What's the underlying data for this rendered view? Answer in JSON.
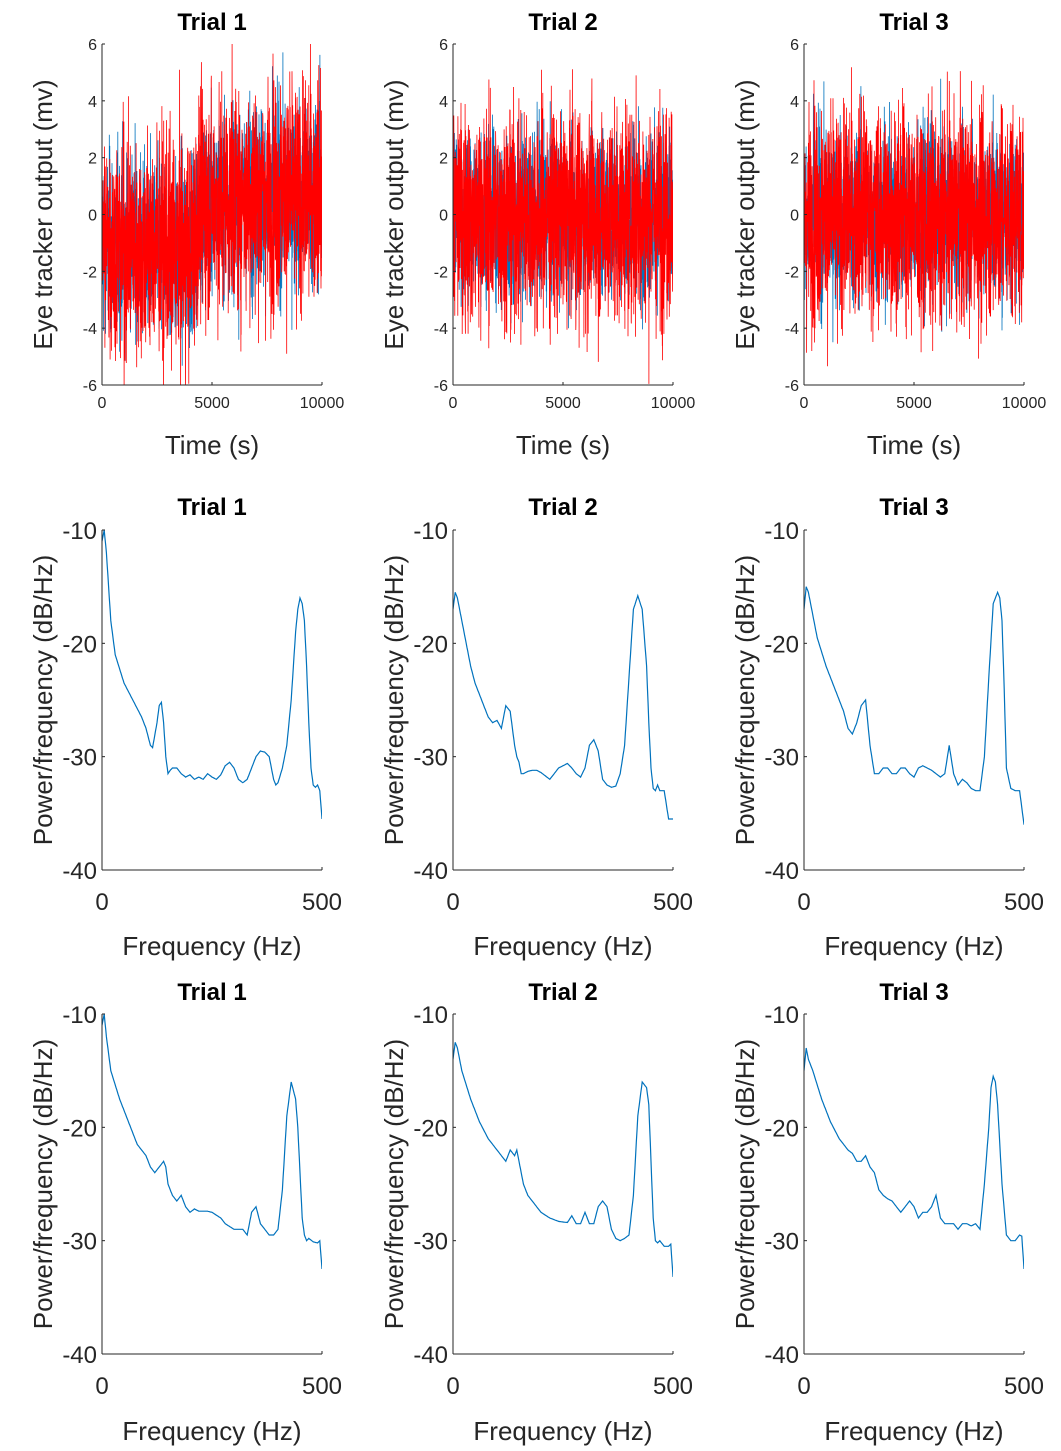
{
  "chart_data": [
    {
      "type": "line",
      "title": "Trial 1",
      "xlabel": "Time (s)",
      "ylabel": "Eye tracker output (mv)",
      "xlim": [
        0,
        10000
      ],
      "ylim": [
        -6,
        6
      ],
      "xticks": [
        0,
        5000,
        10000
      ],
      "xtick_labels": [
        "0",
        "5000",
        "10000"
      ],
      "yticks": [
        -6,
        -4,
        -2,
        0,
        2,
        4,
        6
      ],
      "ytick_labels": [
        "-6",
        "-4",
        "-2",
        "0",
        "2",
        "4",
        "6"
      ],
      "series": [
        {
          "color": "#0072BD",
          "noise": 1.6,
          "mean_x": [
            0,
            2000,
            4000,
            4500,
            6000,
            8000,
            10000
          ],
          "mean_y": [
            -1,
            -1.2,
            -1.3,
            0.3,
            0.6,
            0.7,
            0.8
          ]
        },
        {
          "color": "#FF0000",
          "noise": 2.0,
          "mean_x": [
            0,
            2000,
            4000,
            4500,
            6000,
            8000,
            10000
          ],
          "mean_y": [
            -1,
            -1.2,
            -1.3,
            0.3,
            0.6,
            0.7,
            0.8
          ]
        }
      ]
    },
    {
      "type": "line",
      "title": "Trial 2",
      "xlabel": "Time (s)",
      "ylabel": "Eye tracker output (mv)",
      "xlim": [
        0,
        10000
      ],
      "ylim": [
        -6,
        6
      ],
      "xticks": [
        0,
        5000,
        10000
      ],
      "xtick_labels": [
        "0",
        "5000",
        "10000"
      ],
      "yticks": [
        -6,
        -4,
        -2,
        0,
        2,
        4,
        6
      ],
      "ytick_labels": [
        "-6",
        "-4",
        "-2",
        "0",
        "2",
        "4",
        "6"
      ],
      "series": [
        {
          "color": "#0072BD",
          "noise": 1.5,
          "mean_x": [
            0,
            5000,
            10000
          ],
          "mean_y": [
            0,
            0,
            0
          ]
        },
        {
          "color": "#FF0000",
          "noise": 1.9,
          "mean_x": [
            0,
            5000,
            10000
          ],
          "mean_y": [
            0,
            0,
            0
          ]
        }
      ]
    },
    {
      "type": "line",
      "title": "Trial 3",
      "xlabel": "Time (s)",
      "ylabel": "Eye tracker output (mv)",
      "xlim": [
        0,
        10000
      ],
      "ylim": [
        -6,
        6
      ],
      "xticks": [
        0,
        5000,
        10000
      ],
      "xtick_labels": [
        "0",
        "5000",
        "10000"
      ],
      "yticks": [
        -6,
        -4,
        -2,
        0,
        2,
        4,
        6
      ],
      "ytick_labels": [
        "-6",
        "-4",
        "-2",
        "0",
        "2",
        "4",
        "6"
      ],
      "series": [
        {
          "color": "#0072BD",
          "noise": 1.5,
          "mean_x": [
            0,
            5000,
            10000
          ],
          "mean_y": [
            0,
            0,
            0
          ]
        },
        {
          "color": "#FF0000",
          "noise": 1.9,
          "mean_x": [
            0,
            5000,
            10000
          ],
          "mean_y": [
            0,
            0,
            0
          ]
        }
      ]
    },
    {
      "type": "line",
      "title": "Trial 1",
      "xlabel": "Frequency (Hz)",
      "ylabel": "Power/frequency (dB/Hz)",
      "xlim": [
        0,
        500
      ],
      "ylim": [
        -40,
        -10
      ],
      "xticks": [
        0,
        500
      ],
      "xtick_labels": [
        "0",
        "500"
      ],
      "yticks": [
        -40,
        -30,
        -20,
        -10
      ],
      "ytick_labels": [
        "-40",
        "-30",
        "-20",
        "-10"
      ],
      "series": [
        {
          "color": "#0072BD",
          "x": [
            0,
            5,
            10,
            20,
            30,
            50,
            70,
            90,
            100,
            110,
            115,
            125,
            130,
            135,
            140,
            145,
            150,
            155,
            160,
            170,
            180,
            190,
            200,
            210,
            220,
            230,
            240,
            250,
            260,
            270,
            280,
            290,
            300,
            310,
            320,
            330,
            340,
            350,
            360,
            370,
            380,
            385,
            390,
            395,
            400,
            410,
            420,
            430,
            440,
            445,
            450,
            455,
            460,
            465,
            470,
            475,
            480,
            485,
            490,
            495,
            498,
            500
          ],
          "y": [
            -11,
            -10,
            -12,
            -18,
            -21,
            -23.5,
            -25,
            -26.5,
            -27.5,
            -29,
            -29.2,
            -27,
            -25.5,
            -25.2,
            -27,
            -30,
            -31.5,
            -31.2,
            -31,
            -31,
            -31.5,
            -31.8,
            -31.6,
            -32,
            -31.8,
            -32,
            -31.5,
            -31.8,
            -32,
            -31.6,
            -30.8,
            -30.5,
            -31,
            -32,
            -32.3,
            -32,
            -31,
            -30,
            -29.5,
            -29.6,
            -30,
            -31,
            -32,
            -32.5,
            -32.3,
            -31,
            -29,
            -25,
            -19,
            -17,
            -16,
            -16.5,
            -18,
            -22,
            -27,
            -31,
            -32.5,
            -32.7,
            -32.5,
            -33,
            -34.5,
            -35.5
          ]
        }
      ]
    },
    {
      "type": "line",
      "title": "Trial 2",
      "xlabel": "Frequency (Hz)",
      "ylabel": "Power/frequency (dB/Hz)",
      "xlim": [
        0,
        500
      ],
      "ylim": [
        -40,
        -10
      ],
      "xticks": [
        0,
        500
      ],
      "xtick_labels": [
        "0",
        "500"
      ],
      "yticks": [
        -40,
        -30,
        -20,
        -10
      ],
      "ytick_labels": [
        "-40",
        "-30",
        "-20",
        "-10"
      ],
      "series": [
        {
          "color": "#0072BD",
          "x": [
            0,
            5,
            10,
            20,
            30,
            40,
            50,
            60,
            70,
            80,
            90,
            100,
            110,
            120,
            130,
            140,
            145,
            150,
            155,
            160,
            170,
            180,
            190,
            200,
            220,
            240,
            260,
            270,
            280,
            290,
            300,
            310,
            320,
            330,
            340,
            350,
            360,
            370,
            380,
            390,
            400,
            410,
            420,
            430,
            440,
            445,
            450,
            455,
            460,
            465,
            470,
            480,
            490,
            500
          ],
          "y": [
            -17,
            -15.5,
            -16,
            -18,
            -20,
            -22,
            -23.5,
            -24.5,
            -25.5,
            -26.5,
            -27,
            -26.8,
            -27.5,
            -25.5,
            -26,
            -29,
            -30,
            -30.5,
            -31.5,
            -31.5,
            -31.3,
            -31.2,
            -31.2,
            -31.4,
            -32,
            -31,
            -30.6,
            -31,
            -31.5,
            -31.8,
            -31,
            -29,
            -28.5,
            -29.5,
            -32,
            -32.5,
            -32.7,
            -32.6,
            -31.5,
            -29,
            -23,
            -17,
            -15.8,
            -17,
            -22,
            -27,
            -31,
            -32.8,
            -33,
            -32.5,
            -33,
            -33,
            -35.5,
            -35.5
          ]
        }
      ]
    },
    {
      "type": "line",
      "title": "Trial 3",
      "xlabel": "Frequency (Hz)",
      "ylabel": "Power/frequency (dB/Hz)",
      "xlim": [
        0,
        500
      ],
      "ylim": [
        -40,
        -10
      ],
      "xticks": [
        0,
        500
      ],
      "xtick_labels": [
        "0",
        "500"
      ],
      "yticks": [
        -40,
        -30,
        -20,
        -10
      ],
      "ytick_labels": [
        "-40",
        "-30",
        "-20",
        "-10"
      ],
      "series": [
        {
          "color": "#0072BD",
          "x": [
            0,
            5,
            10,
            20,
            30,
            50,
            70,
            90,
            100,
            110,
            120,
            130,
            140,
            145,
            150,
            160,
            170,
            180,
            190,
            200,
            210,
            220,
            230,
            240,
            250,
            260,
            270,
            280,
            290,
            300,
            310,
            320,
            330,
            340,
            350,
            360,
            370,
            380,
            390,
            400,
            405,
            410,
            420,
            430,
            440,
            445,
            450,
            455,
            460,
            470,
            480,
            490,
            500
          ],
          "y": [
            -17,
            -15,
            -15.5,
            -17.5,
            -19.5,
            -22,
            -24,
            -26,
            -27.5,
            -28,
            -27,
            -25.5,
            -25,
            -27,
            -29,
            -31.5,
            -31.5,
            -31,
            -31,
            -31.5,
            -31.5,
            -31,
            -31,
            -31.5,
            -31.8,
            -31,
            -30.8,
            -31,
            -31.2,
            -31.5,
            -31.8,
            -31.5,
            -29,
            -31.5,
            -32.5,
            -32,
            -32.3,
            -32.8,
            -33,
            -33,
            -31.5,
            -30,
            -23,
            -16.5,
            -15.5,
            -16,
            -18,
            -24,
            -31,
            -32.8,
            -33,
            -33,
            -36
          ]
        }
      ]
    },
    {
      "type": "line",
      "title": "Trial 1",
      "xlabel": "Frequency (Hz)",
      "ylabel": "Power/frequency (dB/Hz)",
      "xlim": [
        0,
        500
      ],
      "ylim": [
        -40,
        -10
      ],
      "xticks": [
        0,
        500
      ],
      "xtick_labels": [
        "0",
        "500"
      ],
      "yticks": [
        -40,
        -30,
        -20,
        -10
      ],
      "ytick_labels": [
        "-40",
        "-30",
        "-20",
        "-10"
      ],
      "series": [
        {
          "color": "#0072BD",
          "x": [
            0,
            5,
            10,
            20,
            40,
            60,
            80,
            100,
            110,
            120,
            130,
            140,
            145,
            150,
            160,
            170,
            180,
            190,
            200,
            210,
            220,
            240,
            250,
            270,
            280,
            300,
            320,
            330,
            340,
            350,
            360,
            370,
            380,
            390,
            400,
            410,
            420,
            430,
            440,
            445,
            450,
            455,
            460,
            465,
            470,
            480,
            490,
            495,
            500
          ],
          "y": [
            -11,
            -10,
            -12,
            -15,
            -17.5,
            -19.5,
            -21.5,
            -22.5,
            -23.5,
            -24,
            -23.5,
            -23,
            -23.5,
            -25,
            -26,
            -26.5,
            -26,
            -27,
            -27.5,
            -27.2,
            -27.4,
            -27.4,
            -27.5,
            -28,
            -28.5,
            -29,
            -29,
            -29.5,
            -27.5,
            -27,
            -28.5,
            -29,
            -29.5,
            -29.5,
            -29,
            -25.5,
            -19,
            -16,
            -17.5,
            -20,
            -24,
            -28,
            -29.5,
            -30,
            -29.8,
            -30.1,
            -30.2,
            -30,
            -32.5
          ]
        }
      ]
    },
    {
      "type": "line",
      "title": "Trial 2",
      "xlabel": "Frequency (Hz)",
      "ylabel": "Power/frequency (dB/Hz)",
      "xlim": [
        0,
        500
      ],
      "ylim": [
        -40,
        -10
      ],
      "xticks": [
        0,
        500
      ],
      "xtick_labels": [
        "0",
        "500"
      ],
      "yticks": [
        -40,
        -30,
        -20,
        -10
      ],
      "ytick_labels": [
        "-40",
        "-30",
        "-20",
        "-10"
      ],
      "series": [
        {
          "color": "#0072BD",
          "x": [
            0,
            5,
            10,
            20,
            40,
            60,
            80,
            100,
            110,
            120,
            130,
            140,
            145,
            150,
            160,
            170,
            180,
            200,
            220,
            240,
            260,
            270,
            280,
            290,
            300,
            310,
            320,
            330,
            340,
            350,
            360,
            370,
            380,
            390,
            400,
            410,
            420,
            430,
            440,
            445,
            450,
            455,
            460,
            465,
            470,
            480,
            490,
            495,
            500
          ],
          "y": [
            -14,
            -12.5,
            -13,
            -15,
            -17.5,
            -19.5,
            -21,
            -22,
            -22.5,
            -23,
            -22,
            -22.5,
            -22,
            -23,
            -25,
            -26,
            -26.5,
            -27.5,
            -28,
            -28.3,
            -28.4,
            -27.8,
            -28.5,
            -28.5,
            -27.5,
            -28.5,
            -28.5,
            -27,
            -26.5,
            -27,
            -29,
            -29.8,
            -30,
            -29.8,
            -29.5,
            -26,
            -19,
            -16,
            -16.5,
            -18,
            -23,
            -28,
            -30,
            -30.2,
            -30,
            -30.5,
            -30.5,
            -30.3,
            -33.2
          ]
        }
      ]
    },
    {
      "type": "line",
      "title": "Trial 3",
      "xlabel": "Frequency (Hz)",
      "ylabel": "Power/frequency (dB/Hz)",
      "xlim": [
        0,
        500
      ],
      "ylim": [
        -40,
        -10
      ],
      "xticks": [
        0,
        500
      ],
      "xtick_labels": [
        "0",
        "500"
      ],
      "yticks": [
        -40,
        -30,
        -20,
        -10
      ],
      "ytick_labels": [
        "-40",
        "-30",
        "-20",
        "-10"
      ],
      "series": [
        {
          "color": "#0072BD",
          "x": [
            0,
            5,
            10,
            20,
            40,
            60,
            80,
            100,
            110,
            120,
            130,
            140,
            150,
            160,
            170,
            180,
            190,
            200,
            210,
            220,
            230,
            240,
            250,
            260,
            270,
            280,
            290,
            300,
            310,
            320,
            330,
            340,
            350,
            360,
            370,
            380,
            390,
            400,
            410,
            420,
            425,
            430,
            435,
            440,
            450,
            460,
            470,
            480,
            490,
            495,
            500
          ],
          "y": [
            -15,
            -13,
            -14,
            -15,
            -17.5,
            -19.5,
            -21,
            -22,
            -22.3,
            -23,
            -23,
            -22.5,
            -23.5,
            -24,
            -25.5,
            -26,
            -26.3,
            -26.5,
            -27,
            -27.5,
            -27,
            -26.5,
            -27,
            -28,
            -27.5,
            -27.5,
            -27,
            -26,
            -28,
            -28.5,
            -28.5,
            -28.5,
            -29,
            -28.5,
            -28.5,
            -28.7,
            -28.5,
            -29,
            -25,
            -20,
            -16.5,
            -15.5,
            -16,
            -18,
            -25,
            -29.5,
            -30,
            -30,
            -29.5,
            -29.6,
            -32.5
          ]
        }
      ]
    }
  ]
}
